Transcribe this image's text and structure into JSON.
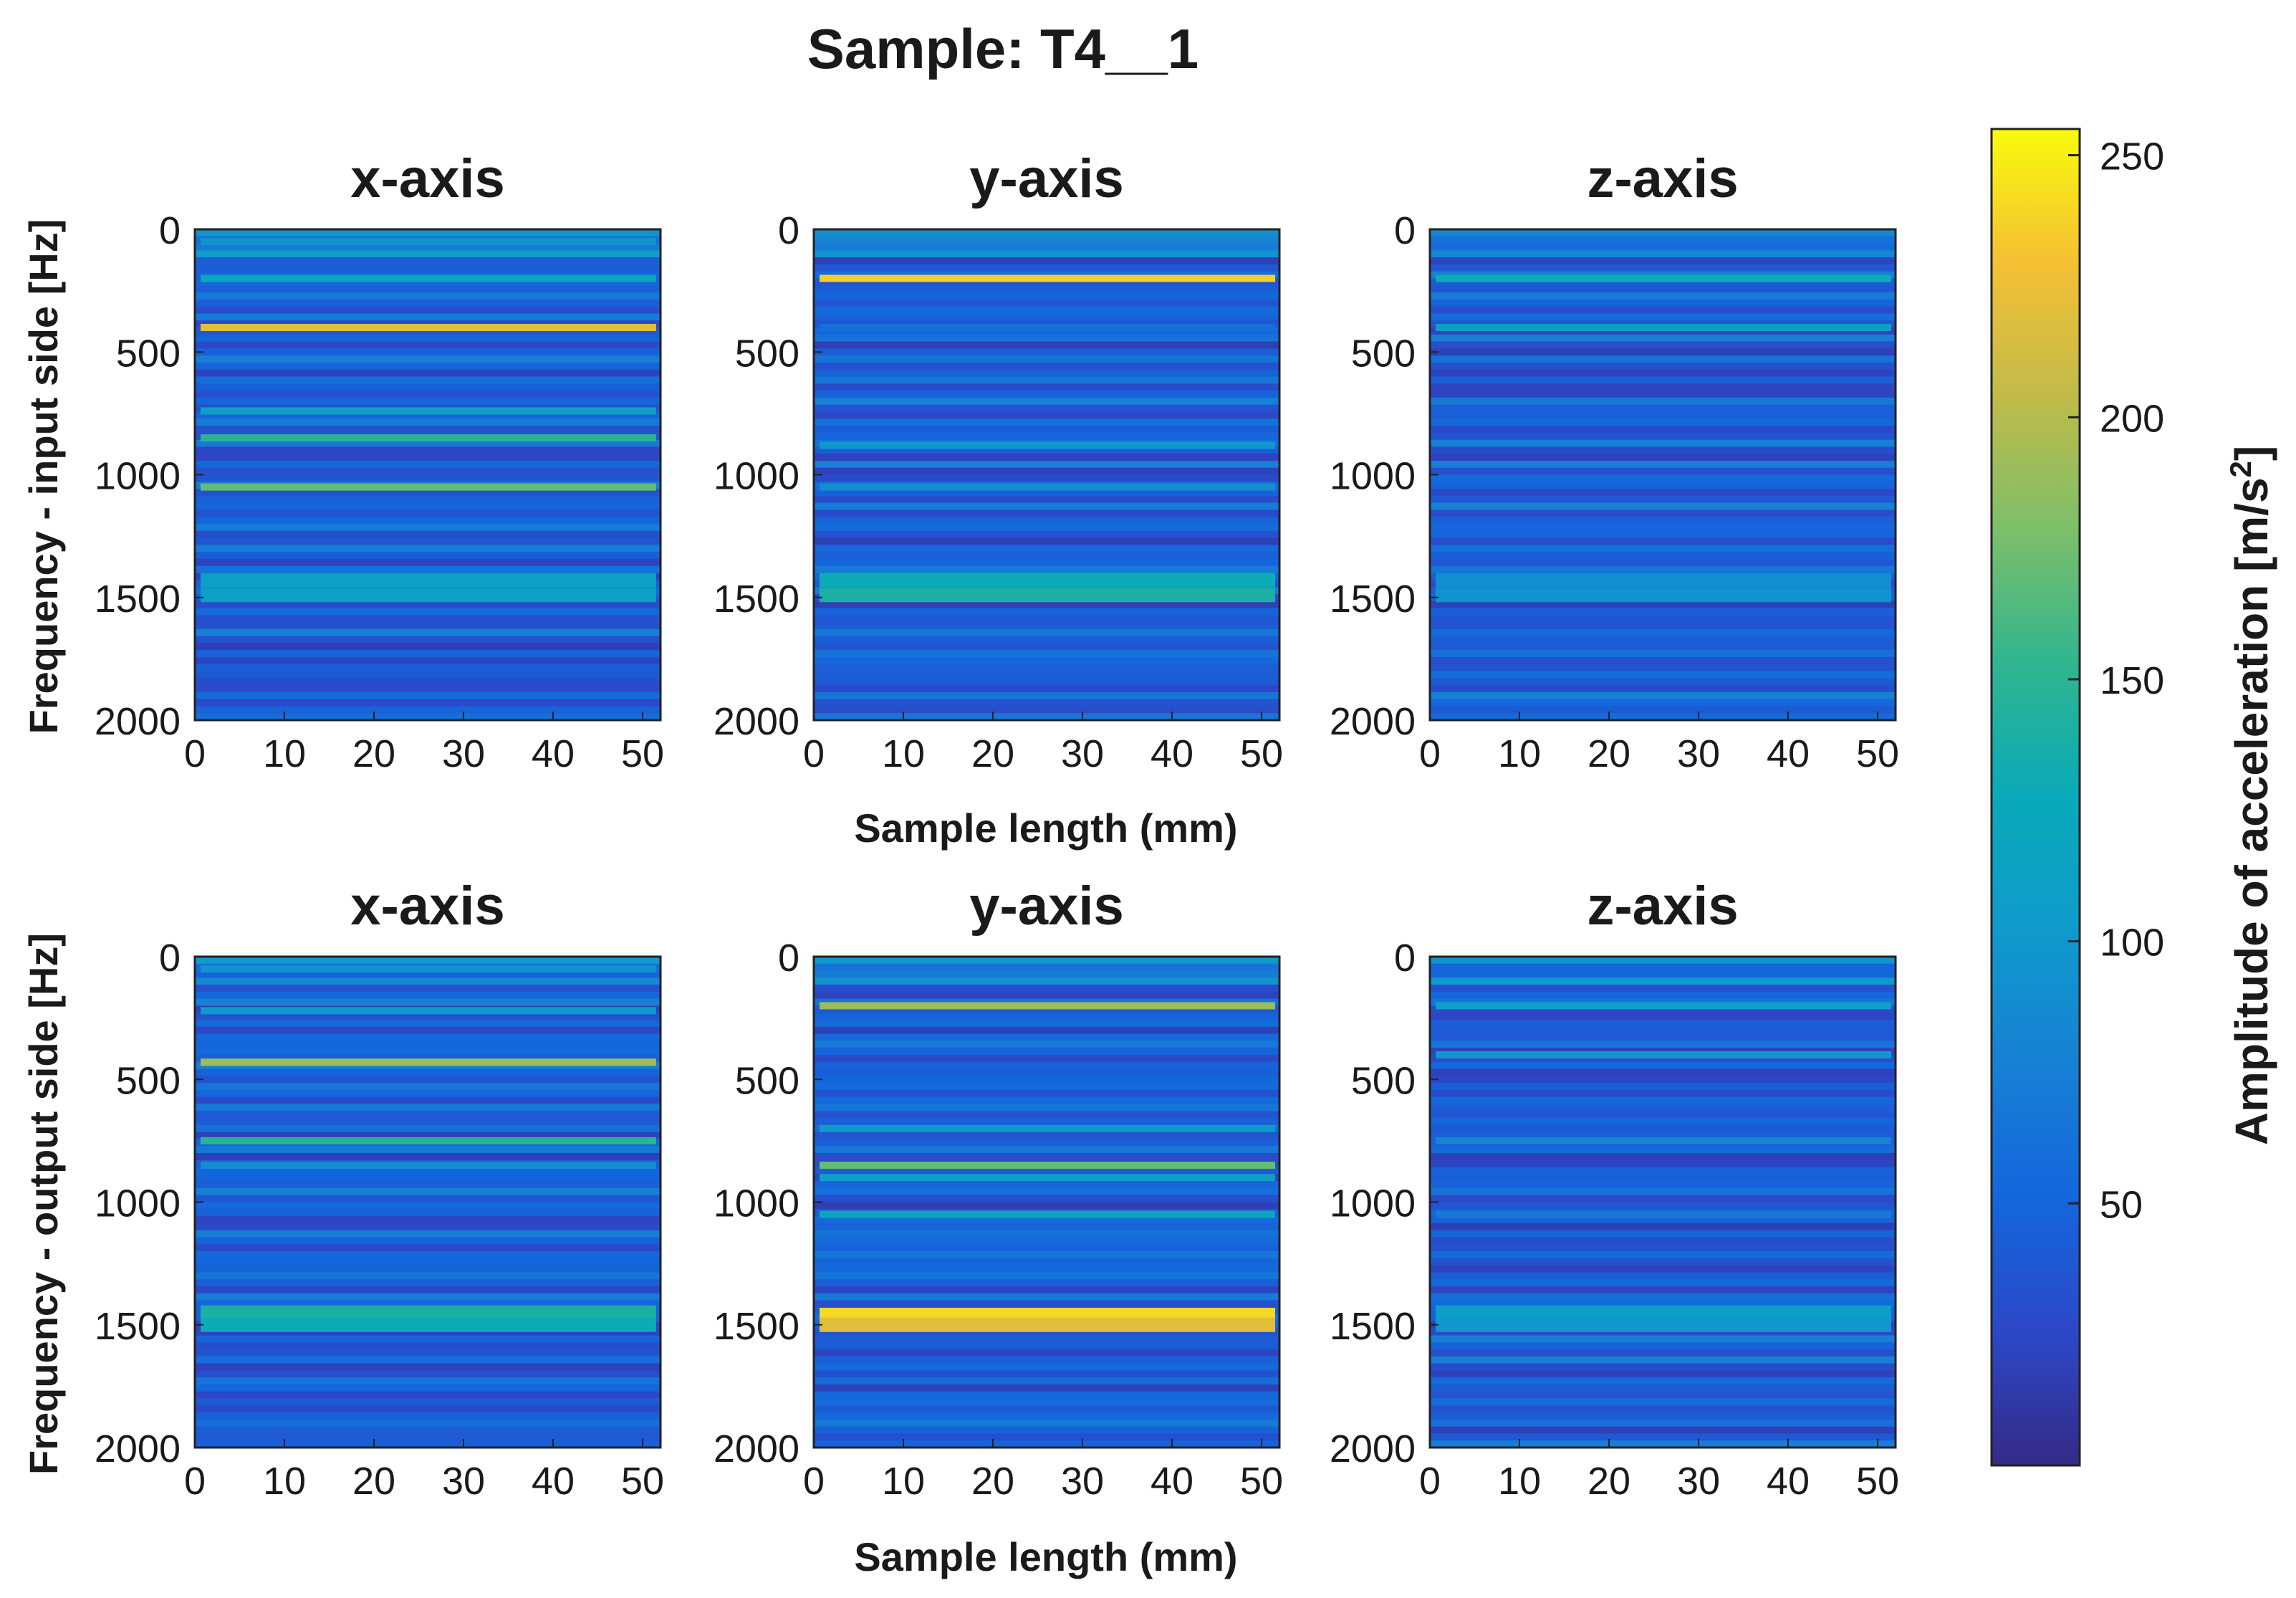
{
  "chart_data": {
    "type": "heatmap",
    "title": "Sample: T4__1",
    "colormap": "parula",
    "xlim": [
      0,
      52
    ],
    "ylim": [
      0,
      2000
    ],
    "xticks": [
      "0",
      "10",
      "20",
      "30",
      "40",
      "50"
    ],
    "yticks": [
      "0",
      "500",
      "1000",
      "1500",
      "2000"
    ],
    "xlabel": "Sample length (mm)",
    "rows": [
      {
        "ylabel": "Frequency - input side [Hz]",
        "panels": [
          {
            "title": "x-axis",
            "bands": [
              {
                "f": 50,
                "amp": 95
              },
              {
                "f": 200,
                "amp": 120
              },
              {
                "f": 400,
                "amp": 220
              },
              {
                "f": 740,
                "amp": 110
              },
              {
                "f": 850,
                "amp": 150
              },
              {
                "f": 1050,
                "amp": 170
              },
              {
                "f": 1430,
                "amp": 110
              },
              {
                "f": 1490,
                "amp": 110
              }
            ]
          },
          {
            "title": "y-axis",
            "bands": [
              {
                "f": 200,
                "amp": 235
              },
              {
                "f": 400,
                "amp": 60
              },
              {
                "f": 880,
                "amp": 100
              },
              {
                "f": 1050,
                "amp": 90
              },
              {
                "f": 1430,
                "amp": 130
              },
              {
                "f": 1490,
                "amp": 140
              }
            ]
          },
          {
            "title": "z-axis",
            "bands": [
              {
                "f": 200,
                "amp": 130
              },
              {
                "f": 400,
                "amp": 110
              },
              {
                "f": 1430,
                "amp": 90
              },
              {
                "f": 1490,
                "amp": 95
              }
            ]
          }
        ]
      },
      {
        "ylabel": "Frequency - output side [Hz]",
        "panels": [
          {
            "title": "x-axis",
            "bands": [
              {
                "f": 50,
                "amp": 95
              },
              {
                "f": 220,
                "amp": 100
              },
              {
                "f": 430,
                "amp": 190
              },
              {
                "f": 750,
                "amp": 150
              },
              {
                "f": 850,
                "amp": 90
              },
              {
                "f": 1450,
                "amp": 140
              },
              {
                "f": 1500,
                "amp": 130
              }
            ]
          },
          {
            "title": "y-axis",
            "bands": [
              {
                "f": 200,
                "amp": 190
              },
              {
                "f": 700,
                "amp": 100
              },
              {
                "f": 850,
                "amp": 170
              },
              {
                "f": 900,
                "amp": 110
              },
              {
                "f": 1050,
                "amp": 120
              },
              {
                "f": 1460,
                "amp": 240
              },
              {
                "f": 1500,
                "amp": 220
              }
            ]
          },
          {
            "title": "z-axis",
            "bands": [
              {
                "f": 200,
                "amp": 110
              },
              {
                "f": 400,
                "amp": 100
              },
              {
                "f": 750,
                "amp": 80
              },
              {
                "f": 1050,
                "amp": 70
              },
              {
                "f": 1450,
                "amp": 110
              },
              {
                "f": 1500,
                "amp": 100
              }
            ]
          }
        ]
      }
    ],
    "colorbar": {
      "label_main": "Amplitude of acceleration [m/s",
      "label_sup": "2",
      "label_end": "]",
      "min": 0,
      "max": 255,
      "ticks": [
        "50",
        "100",
        "150",
        "200",
        "250"
      ]
    }
  }
}
